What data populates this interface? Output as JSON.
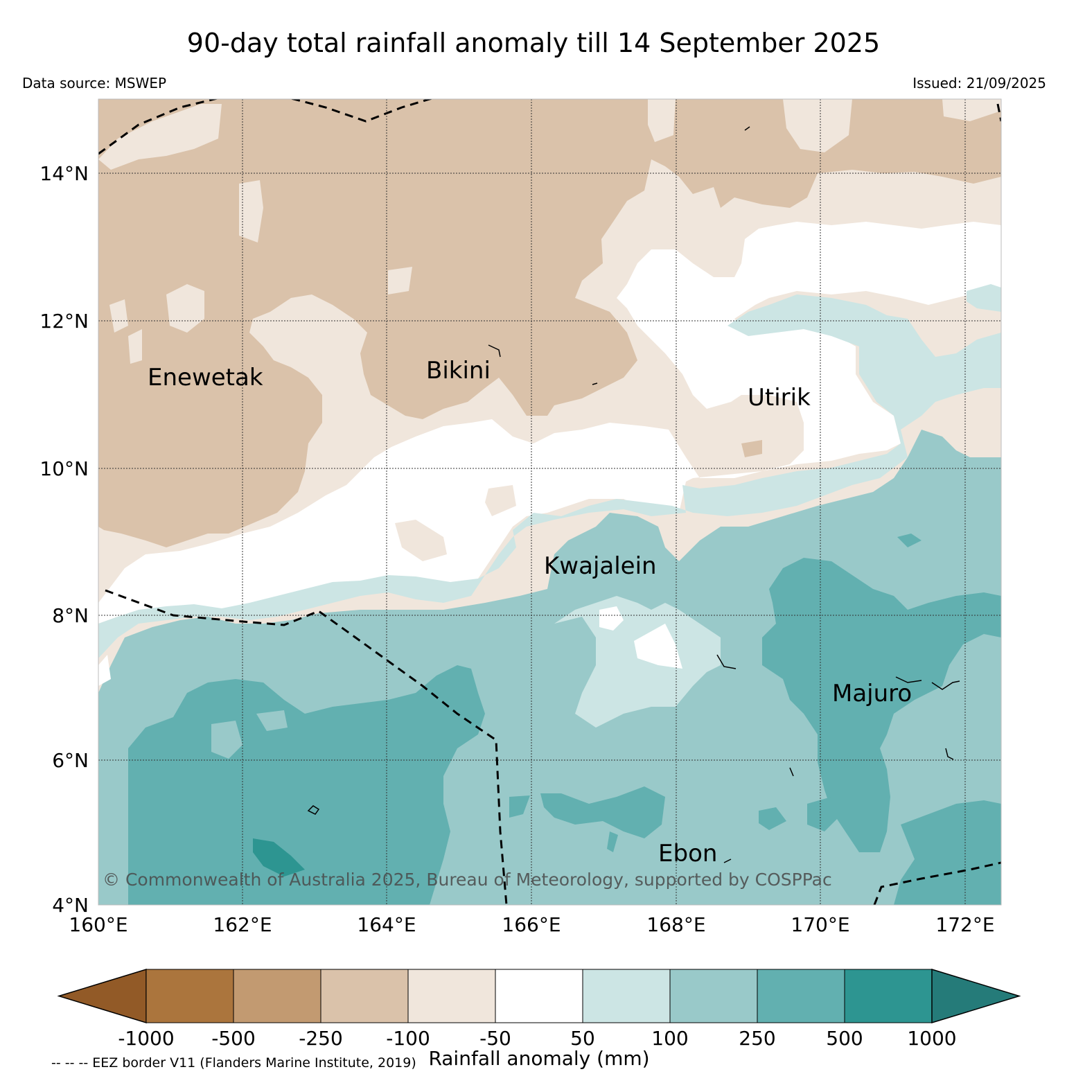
{
  "title": "90-day total rainfall anomaly till 14 September 2025",
  "data_source": "Data source: MSWEP",
  "issued": "Issued: 21/09/2025",
  "copyright": "© Commonwealth of Australia 2025, Bureau of Meteorology, supported by COSPPac",
  "eez_note": "-- -- -- EEZ border V11 (Flanders Marine Institute, 2019)",
  "latitude_labels": [
    "14°N",
    "12°N",
    "10°N",
    "8°N",
    "6°N",
    "4°N"
  ],
  "longitude_labels": [
    "160°E",
    "162°E",
    "164°E",
    "166°E",
    "168°E",
    "170°E",
    "172°E"
  ],
  "places": [
    {
      "name": "Enewetak"
    },
    {
      "name": "Bikini"
    },
    {
      "name": "Utirik"
    },
    {
      "name": "Kwajalein"
    },
    {
      "name": "Majuro"
    },
    {
      "name": "Ebon"
    }
  ],
  "colorbar": {
    "title": "Rainfall anomaly (mm)",
    "tick_labels": [
      "-1000",
      "-500",
      "-250",
      "-100",
      "-50",
      "50",
      "100",
      "250",
      "500",
      "1000"
    ],
    "colors": [
      "#925a27",
      "#ab753d",
      "#c29a71",
      "#dac2aa",
      "#f0e6dc",
      "#ffffff",
      "#cce5e4",
      "#99c9c9",
      "#62b0b0",
      "#2d9591",
      "#257b79"
    ]
  }
}
